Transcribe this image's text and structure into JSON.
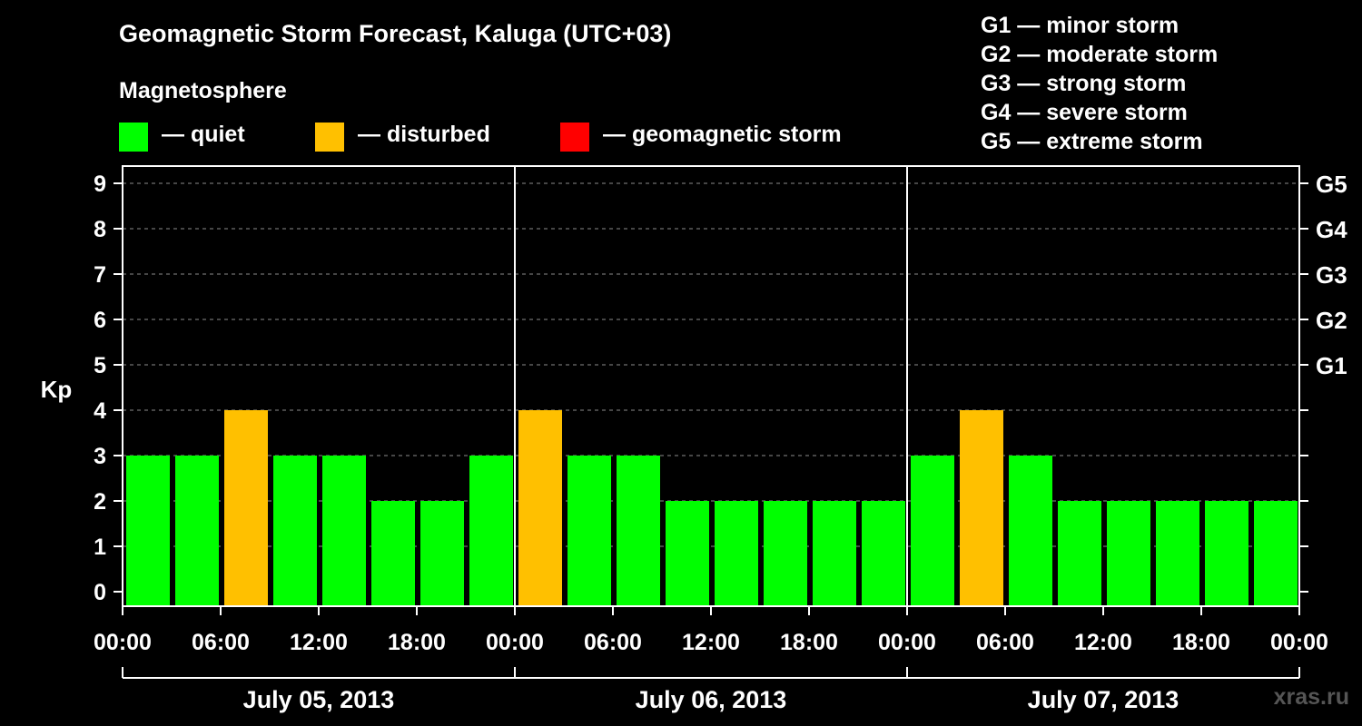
{
  "title": "Geomagnetic Storm Forecast, Kaluga (UTC+03)",
  "subtitle": "Magnetosphere",
  "legend": [
    {
      "label": "— quiet",
      "color": "#00ff00"
    },
    {
      "label": "— disturbed",
      "color": "#ffc000"
    },
    {
      "label": "— geomagnetic storm",
      "color": "#ff0000"
    }
  ],
  "g_scale": [
    {
      "label": "G1 — minor storm"
    },
    {
      "label": "G2 — moderate storm"
    },
    {
      "label": "G3 — strong storm"
    },
    {
      "label": "G4 — severe storm"
    },
    {
      "label": "G5 — extreme storm"
    }
  ],
  "footer": "xras.ru",
  "chart_data": {
    "type": "bar",
    "ylabel": "Kp",
    "ylim": [
      0,
      9
    ],
    "yticks": [
      "0",
      "1",
      "2",
      "3",
      "4",
      "5",
      "6",
      "7",
      "8",
      "9"
    ],
    "right_ticks": [
      {
        "kp": 5,
        "label": "G1"
      },
      {
        "kp": 6,
        "label": "G2"
      },
      {
        "kp": 7,
        "label": "G3"
      },
      {
        "kp": 8,
        "label": "G4"
      },
      {
        "kp": 9,
        "label": "G5"
      }
    ],
    "grid": "dashed horizontal",
    "xtick_labels": [
      "00:00",
      "06:00",
      "12:00",
      "18:00",
      "00:00",
      "06:00",
      "12:00",
      "18:00",
      "00:00",
      "06:00",
      "12:00",
      "18:00",
      "00:00"
    ],
    "days": [
      "July 05, 2013",
      "July 06, 2013",
      "July 07, 2013"
    ],
    "categories": [
      "July 05, 2013 00:00-03:00",
      "July 05, 2013 03:00-06:00",
      "July 05, 2013 06:00-09:00",
      "July 05, 2013 09:00-12:00",
      "July 05, 2013 12:00-15:00",
      "July 05, 2013 15:00-18:00",
      "July 05, 2013 18:00-21:00",
      "July 05, 2013 21:00-24:00",
      "July 06, 2013 00:00-03:00",
      "July 06, 2013 03:00-06:00",
      "July 06, 2013 06:00-09:00",
      "July 06, 2013 09:00-12:00",
      "July 06, 2013 12:00-15:00",
      "July 06, 2013 15:00-18:00",
      "July 06, 2013 18:00-21:00",
      "July 06, 2013 21:00-24:00",
      "July 07, 2013 00:00-03:00",
      "July 07, 2013 03:00-06:00",
      "July 07, 2013 06:00-09:00",
      "July 07, 2013 09:00-12:00",
      "July 07, 2013 12:00-15:00",
      "July 07, 2013 15:00-18:00",
      "July 07, 2013 18:00-21:00",
      "July 07, 2013 21:00-24:00"
    ],
    "values": [
      3,
      3,
      4,
      3,
      3,
      2,
      2,
      3,
      4,
      3,
      3,
      2,
      2,
      2,
      2,
      2,
      3,
      4,
      3,
      2,
      2,
      2,
      2,
      2
    ],
    "colors": {
      "quiet": "#00ff00",
      "disturbed": "#ffc000",
      "storm": "#ff0000"
    },
    "grid_color": "#8c8c8c"
  }
}
